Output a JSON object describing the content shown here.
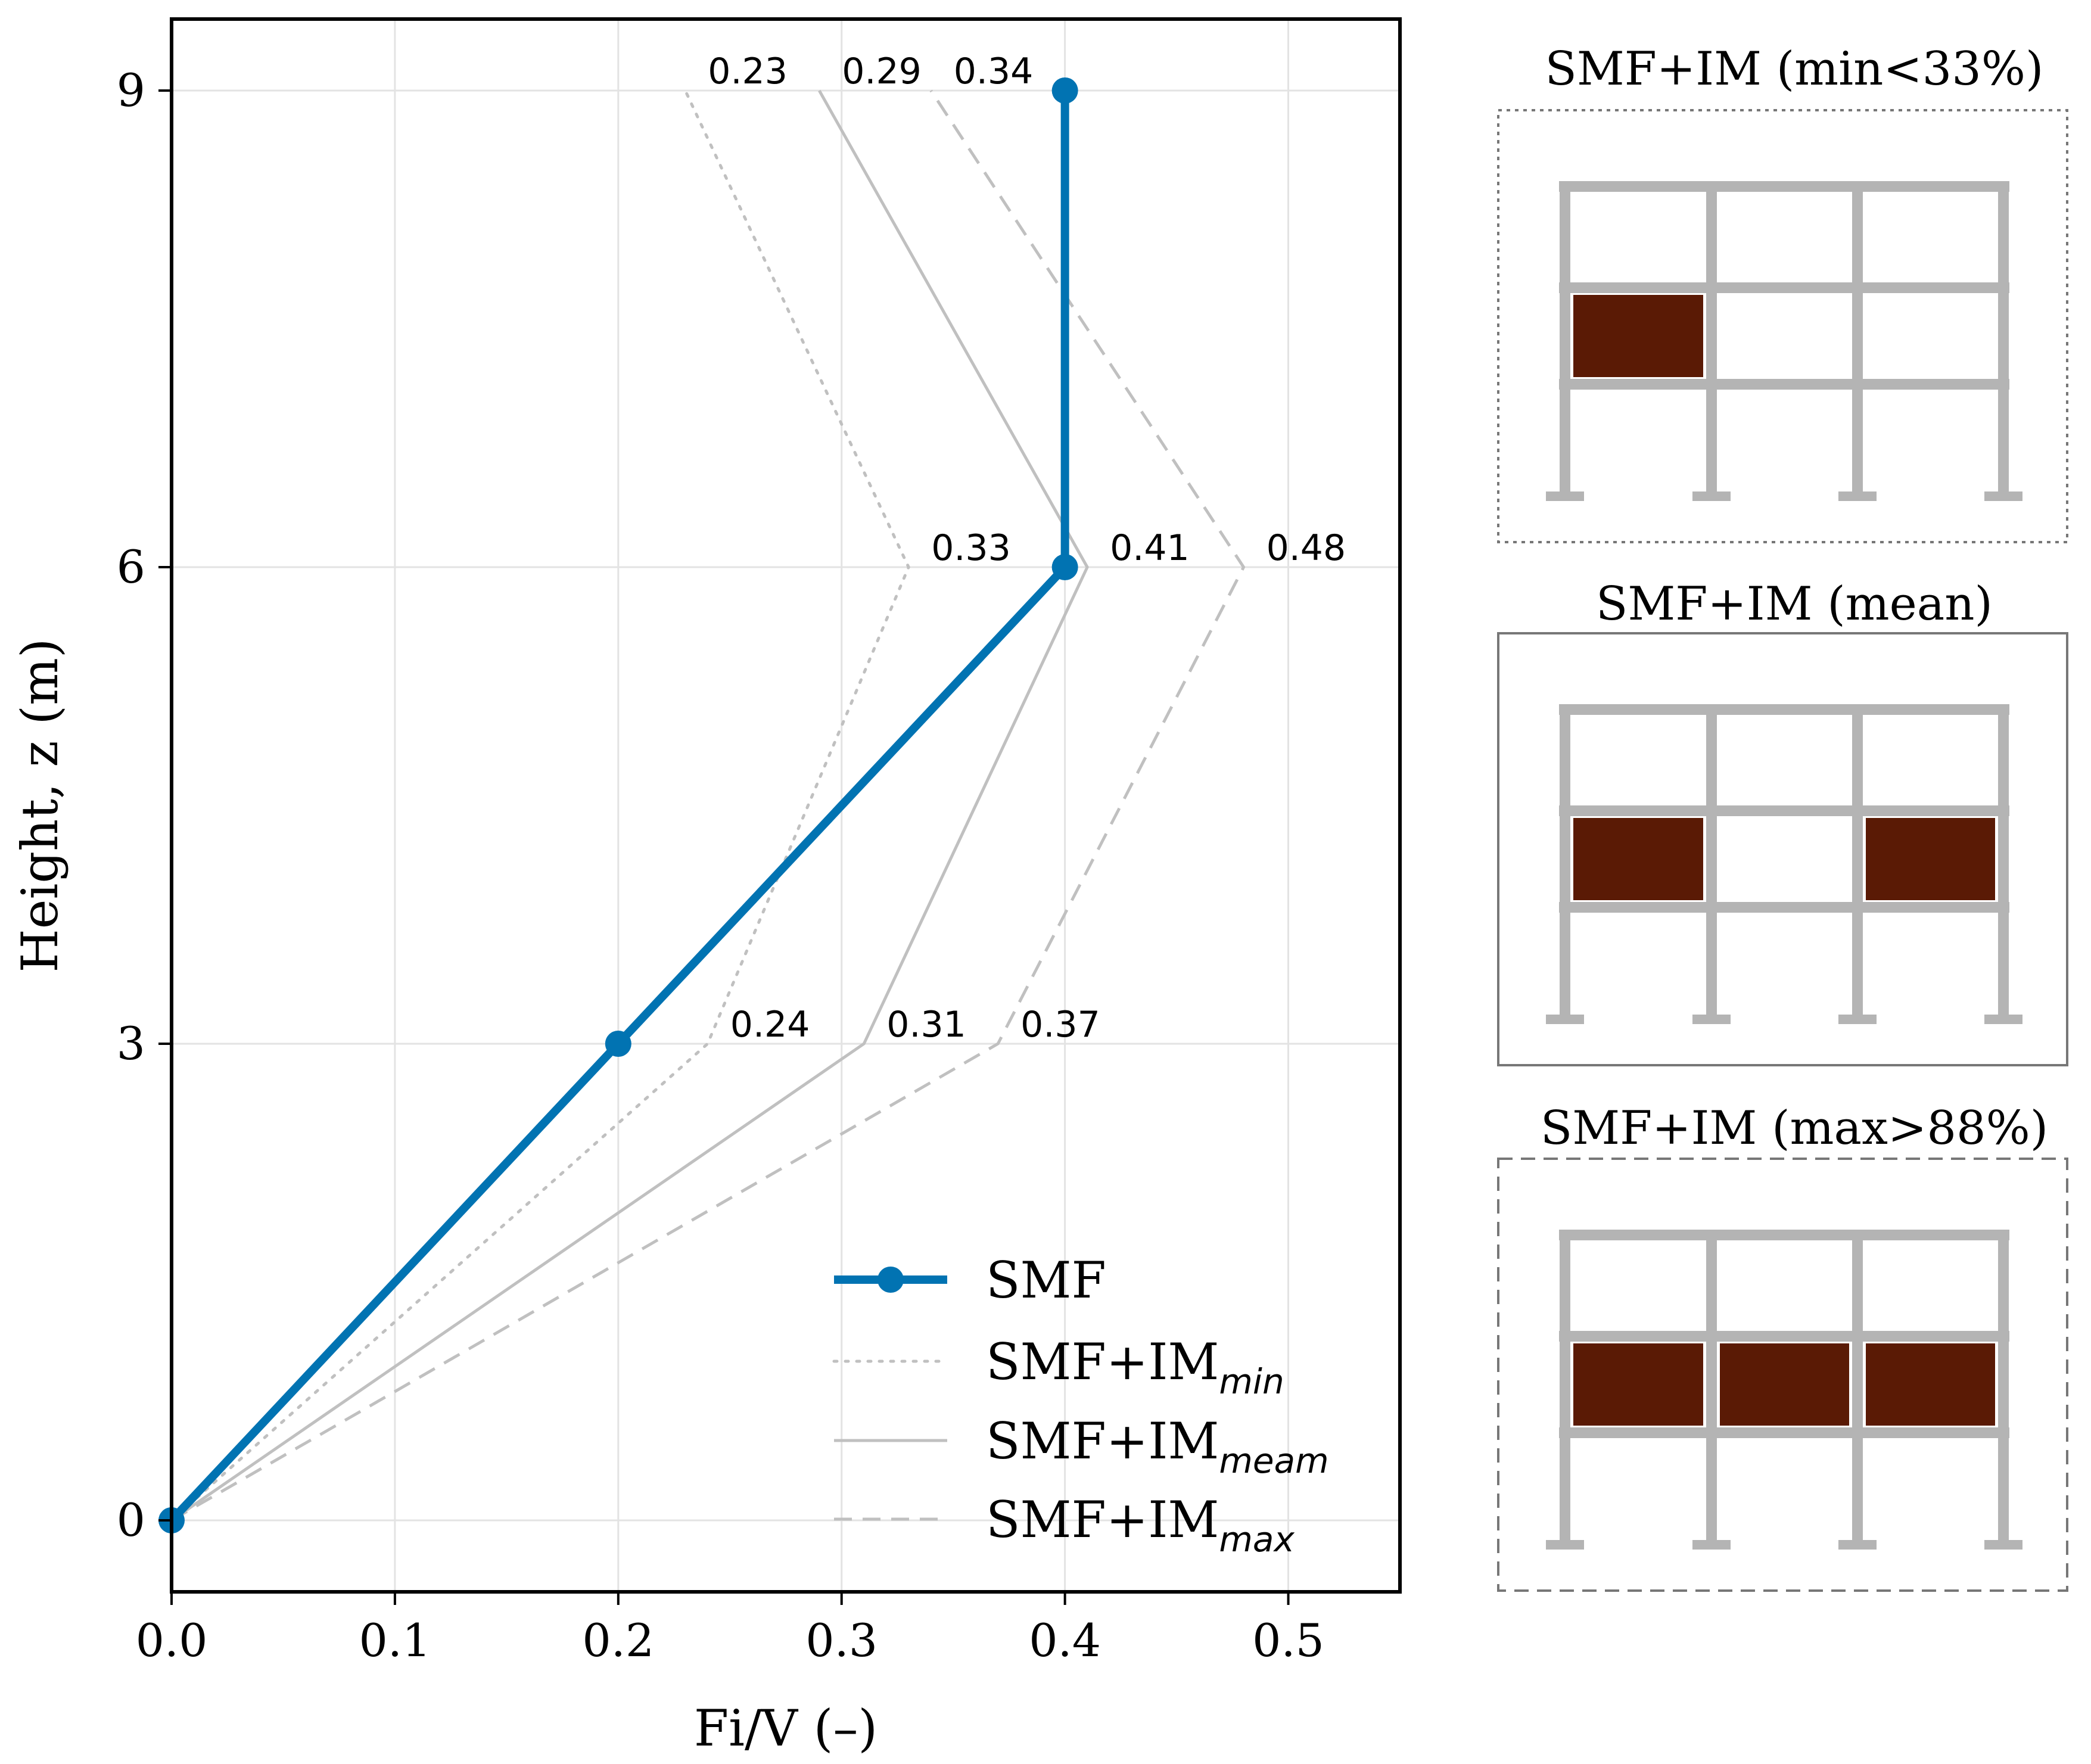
{
  "chart_data": {
    "type": "line",
    "xlabel": "Fi/V (–)",
    "ylabel": "Height, z (m)",
    "xlim": [
      0,
      0.55
    ],
    "ylim": [
      -0.45,
      9.45
    ],
    "xticks": [
      0.0,
      0.1,
      0.2,
      0.3,
      0.4,
      0.5
    ],
    "xtick_labels": [
      "0.0",
      "0.1",
      "0.2",
      "0.3",
      "0.4",
      "0.5"
    ],
    "yticks": [
      0,
      3,
      6,
      9
    ],
    "ytick_labels": [
      "0",
      "3",
      "6",
      "9"
    ],
    "grid": true,
    "legend_position": "lower-right",
    "series": [
      {
        "name": "SMF",
        "legend_main": "SMF",
        "legend_sub": "",
        "style": "solid-marker",
        "color": "#0173b2",
        "x": [
          0.0,
          0.2,
          0.4,
          0.4
        ],
        "y": [
          0,
          3,
          6,
          9
        ]
      },
      {
        "name": "SMF+IMmin",
        "legend_main": "SMF+IM",
        "legend_sub": "min",
        "style": "dotted",
        "color": "#c0c0c0",
        "x": [
          0.0,
          0.24,
          0.33,
          0.23
        ],
        "y": [
          0,
          3,
          6,
          9
        ],
        "labels": [
          "0.24",
          "0.33",
          "0.23"
        ]
      },
      {
        "name": "SMF+IMmeam",
        "legend_main": "SMF+IM",
        "legend_sub": "meam",
        "style": "solid",
        "color": "#c0c0c0",
        "x": [
          0.0,
          0.31,
          0.41,
          0.29
        ],
        "y": [
          0,
          3,
          6,
          9
        ],
        "labels": [
          "0.31",
          "0.41",
          "0.29"
        ]
      },
      {
        "name": "SMF+IMmax",
        "legend_main": "SMF+IM",
        "legend_sub": "max",
        "style": "dashed",
        "color": "#c0c0c0",
        "x": [
          0.0,
          0.37,
          0.48,
          0.34
        ],
        "y": [
          0,
          3,
          6,
          9
        ],
        "labels": [
          "0.37",
          "0.48",
          "0.34"
        ]
      }
    ]
  },
  "panels": [
    {
      "title": "SMF+IM (min<33%)",
      "border": "dotted",
      "infilled_bays": [
        0
      ]
    },
    {
      "title": "SMF+IM (mean)",
      "border": "solid",
      "infilled_bays": [
        0,
        2
      ]
    },
    {
      "title": "SMF+IM (max>88%)",
      "border": "dashed",
      "infilled_bays": [
        0,
        1,
        2
      ]
    }
  ],
  "colors": {
    "infill": "#5a1a05",
    "frame": "#b4b4b4",
    "smf": "#0173b2",
    "im": "#c0c0c0"
  }
}
